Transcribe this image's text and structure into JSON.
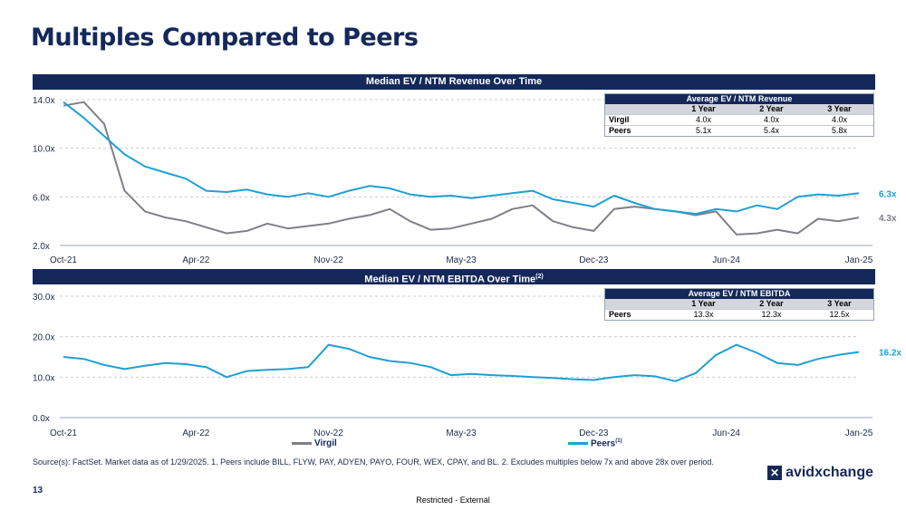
{
  "page_title": "Multiples Compared to Peers",
  "colors": {
    "virgil": "#7f7f8a",
    "peers": "#1fa0d2",
    "navy": "#14285a"
  },
  "chart_data": [
    {
      "type": "line",
      "title": "Median EV / NTM Revenue Over Time",
      "x_ticks": [
        "Oct-21",
        "Apr-22",
        "Nov-22",
        "May-23",
        "Dec-23",
        "Jun-24",
        "Jan-25"
      ],
      "y_ticks": [
        "2.0x",
        "6.0x",
        "10.0x",
        "14.0x"
      ],
      "ylim": [
        2,
        14
      ],
      "series": [
        {
          "name": "Virgil",
          "color": "#7f7f8a",
          "end_label": "4.3x",
          "x": [
            "2021-10",
            "2021-11",
            "2021-12",
            "2022-01",
            "2022-02",
            "2022-03",
            "2022-04",
            "2022-05",
            "2022-06",
            "2022-07",
            "2022-08",
            "2022-09",
            "2022-10",
            "2022-11",
            "2022-12",
            "2023-01",
            "2023-02",
            "2023-03",
            "2023-04",
            "2023-05",
            "2023-06",
            "2023-07",
            "2023-08",
            "2023-09",
            "2023-10",
            "2023-11",
            "2023-12",
            "2024-01",
            "2024-02",
            "2024-03",
            "2024-04",
            "2024-05",
            "2024-06",
            "2024-07",
            "2024-08",
            "2024-09",
            "2024-10",
            "2024-11",
            "2024-12",
            "2025-01"
          ],
          "values": [
            13.5,
            13.8,
            12.0,
            6.5,
            4.8,
            4.3,
            4.0,
            3.5,
            3.0,
            3.2,
            3.8,
            3.4,
            3.6,
            3.8,
            4.2,
            4.5,
            5.0,
            4.0,
            3.3,
            3.4,
            3.8,
            4.2,
            5.0,
            5.3,
            4.0,
            3.5,
            3.2,
            5.0,
            5.2,
            5.0,
            4.8,
            4.5,
            4.8,
            2.9,
            3.0,
            3.3,
            3.0,
            4.2,
            4.0,
            4.3
          ]
        },
        {
          "name": "Peers",
          "color": "#1fa0d2",
          "end_label": "6.3x",
          "x": [
            "2021-10",
            "2021-11",
            "2021-12",
            "2022-01",
            "2022-02",
            "2022-03",
            "2022-04",
            "2022-05",
            "2022-06",
            "2022-07",
            "2022-08",
            "2022-09",
            "2022-10",
            "2022-11",
            "2022-12",
            "2023-01",
            "2023-02",
            "2023-03",
            "2023-04",
            "2023-05",
            "2023-06",
            "2023-07",
            "2023-08",
            "2023-09",
            "2023-10",
            "2023-11",
            "2023-12",
            "2024-01",
            "2024-02",
            "2024-03",
            "2024-04",
            "2024-05",
            "2024-06",
            "2024-07",
            "2024-08",
            "2024-09",
            "2024-10",
            "2024-11",
            "2024-12",
            "2025-01"
          ],
          "values": [
            13.8,
            12.5,
            11.0,
            9.5,
            8.5,
            8.0,
            7.5,
            6.5,
            6.4,
            6.6,
            6.2,
            6.0,
            6.3,
            6.0,
            6.5,
            6.9,
            6.7,
            6.2,
            6.0,
            6.1,
            5.9,
            6.1,
            6.3,
            6.5,
            5.8,
            5.5,
            5.2,
            6.1,
            5.5,
            5.0,
            4.8,
            4.6,
            5.0,
            4.8,
            5.3,
            5.0,
            6.0,
            6.2,
            6.1,
            6.3
          ]
        }
      ],
      "table": {
        "title": "Average EV / NTM Revenue",
        "columns": [
          "",
          "1 Year",
          "2 Year",
          "3 Year"
        ],
        "rows": [
          [
            "Virgil",
            "4.0x",
            "4.0x",
            "4.0x"
          ],
          [
            "Peers",
            "5.1x",
            "5.4x",
            "5.8x"
          ]
        ]
      }
    },
    {
      "type": "line",
      "title": "Median EV / NTM EBITDA Over Time",
      "title_footnote": "(2)",
      "x_ticks": [
        "Oct-21",
        "Apr-22",
        "Nov-22",
        "May-23",
        "Dec-23",
        "Jun-24",
        "Jan-25"
      ],
      "y_ticks": [
        "0.0x",
        "10.0x",
        "20.0x",
        "30.0x"
      ],
      "ylim": [
        0,
        30
      ],
      "series": [
        {
          "name": "Peers",
          "color": "#1fa0d2",
          "end_label": "16.2x",
          "x": [
            "2021-10",
            "2021-11",
            "2021-12",
            "2022-01",
            "2022-02",
            "2022-03",
            "2022-04",
            "2022-05",
            "2022-06",
            "2022-07",
            "2022-08",
            "2022-09",
            "2022-10",
            "2022-11",
            "2022-12",
            "2023-01",
            "2023-02",
            "2023-03",
            "2023-04",
            "2023-05",
            "2023-06",
            "2023-07",
            "2023-08",
            "2023-09",
            "2023-10",
            "2023-11",
            "2023-12",
            "2024-01",
            "2024-02",
            "2024-03",
            "2024-04",
            "2024-05",
            "2024-06",
            "2024-07",
            "2024-08",
            "2024-09",
            "2024-10",
            "2024-11",
            "2024-12",
            "2025-01"
          ],
          "values": [
            15.0,
            14.5,
            13.0,
            12.0,
            12.8,
            13.5,
            13.2,
            12.5,
            10.0,
            11.5,
            11.8,
            12.0,
            12.5,
            18.0,
            17.0,
            15.0,
            14.0,
            13.5,
            12.5,
            10.5,
            10.8,
            10.5,
            10.3,
            10.0,
            9.8,
            9.5,
            9.3,
            10.0,
            10.5,
            10.2,
            9.0,
            11.0,
            15.5,
            18.0,
            16.0,
            13.5,
            13.0,
            14.5,
            15.5,
            16.2
          ]
        }
      ],
      "table": {
        "title": "Average EV / NTM EBITDA",
        "columns": [
          "",
          "1 Year",
          "2 Year",
          "3 Year"
        ],
        "rows": [
          [
            "Peers",
            "13.3x",
            "12.3x",
            "12.5x"
          ]
        ]
      }
    }
  ],
  "legend": {
    "virgil": "Virgil",
    "peers": "Peers",
    "peers_footnote": "(1)"
  },
  "source": "Source(s): FactSet. Market data as of 1/29/2025. 1. Peers include BILL, FLYW, PAY, ADYEN, PAYO, FOUR, WEX, CPAY, and BL. 2. Excludes multiples below 7x and above 28x over period.",
  "page_number": "13",
  "footer": "Restricted - External",
  "logo_text": "avidxchange"
}
